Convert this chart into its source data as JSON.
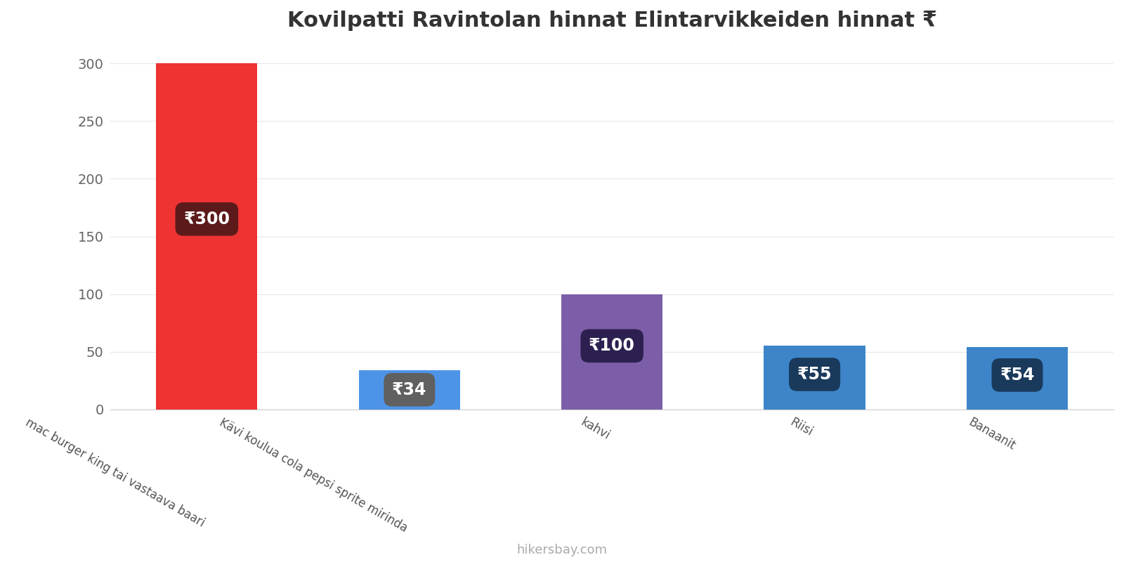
{
  "title": "Kovilpatti Ravintolan hinnat Elintarvikkeiden hinnat ₹",
  "categories": [
    "mac burger king tai vastaava baari",
    "Kävi koulua cola pepsi sprite mirinda",
    "kahvi",
    "Riisi",
    "Banaanit"
  ],
  "values": [
    300,
    34,
    100,
    55,
    54
  ],
  "bar_colors": [
    "#ee3333",
    "#4d94e8",
    "#7b5ea7",
    "#3d85c8",
    "#3d85c8"
  ],
  "label_box_colors": [
    "#5c1a1a",
    "#606060",
    "#2d2050",
    "#1a3a5c",
    "#1a3a5c"
  ],
  "ylim": [
    0,
    315
  ],
  "yticks": [
    0,
    50,
    100,
    150,
    200,
    250,
    300
  ],
  "footer": "hikersbay.com",
  "title_fontsize": 22,
  "label_fontsize": 17,
  "tick_fontsize": 14,
  "footer_fontsize": 13,
  "background_color": "#ffffff",
  "grid_color": "#e8e8e8"
}
